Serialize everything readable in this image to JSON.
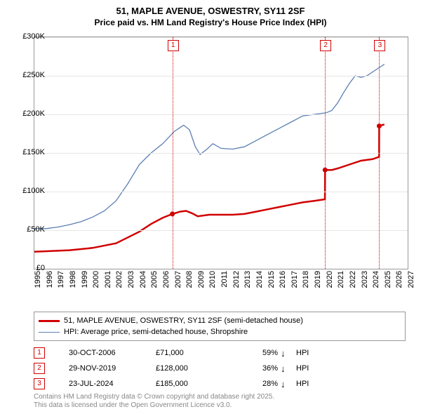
{
  "title_line1": "51, MAPLE AVENUE, OSWESTRY, SY11 2SF",
  "title_line2": "Price paid vs. HM Land Registry's House Price Index (HPI)",
  "chart": {
    "type": "line",
    "background_color": "#ffffff",
    "grid_color": "#e6e6e6",
    "axis_color": "#999999",
    "y": {
      "min": 0,
      "max": 300000,
      "step": 50000,
      "labels": [
        "£0",
        "£50K",
        "£100K",
        "£150K",
        "£200K",
        "£250K",
        "£300K"
      ]
    },
    "x": {
      "min": 1995,
      "max": 2027,
      "step": 1,
      "labels": [
        "1995",
        "1996",
        "1997",
        "1998",
        "1999",
        "2000",
        "2001",
        "2002",
        "2003",
        "2004",
        "2005",
        "2006",
        "2007",
        "2008",
        "2009",
        "2010",
        "2011",
        "2012",
        "2013",
        "2014",
        "2015",
        "2016",
        "2017",
        "2018",
        "2019",
        "2020",
        "2021",
        "2022",
        "2023",
        "2024",
        "2025",
        "2026",
        "2027"
      ]
    },
    "markers": [
      {
        "n": "1",
        "year": 2006.83
      },
      {
        "n": "2",
        "year": 2019.91
      },
      {
        "n": "3",
        "year": 2024.56
      }
    ],
    "series": [
      {
        "name": "price-paid",
        "label": "51, MAPLE AVENUE, OSWESTRY, SY11 2SF (semi-detached house)",
        "color": "#d00000",
        "width": 2.5,
        "points": [
          [
            1995.0,
            22000
          ],
          [
            1998.0,
            24000
          ],
          [
            2000.0,
            27000
          ],
          [
            2002.0,
            33000
          ],
          [
            2004.0,
            48000
          ],
          [
            2005.0,
            58000
          ],
          [
            2006.0,
            66000
          ],
          [
            2006.83,
            71000
          ],
          [
            2007.5,
            74000
          ],
          [
            2008.0,
            75000
          ],
          [
            2008.5,
            72000
          ],
          [
            2009.0,
            68000
          ],
          [
            2010.0,
            70000
          ],
          [
            2012.0,
            70000
          ],
          [
            2013.0,
            71000
          ],
          [
            2014.0,
            74000
          ],
          [
            2015.0,
            77000
          ],
          [
            2016.0,
            80000
          ],
          [
            2017.0,
            83000
          ],
          [
            2018.0,
            86000
          ],
          [
            2019.0,
            88000
          ],
          [
            2019.91,
            90000
          ],
          [
            2019.92,
            128000
          ],
          [
            2020.5,
            128000
          ],
          [
            2021.0,
            130000
          ],
          [
            2022.0,
            135000
          ],
          [
            2023.0,
            140000
          ],
          [
            2024.0,
            142000
          ],
          [
            2024.55,
            145000
          ],
          [
            2024.56,
            185000
          ],
          [
            2025.0,
            187000
          ]
        ],
        "dots": [
          [
            2006.83,
            71000
          ],
          [
            2019.92,
            128000
          ],
          [
            2024.56,
            185000
          ]
        ]
      },
      {
        "name": "hpi",
        "label": "HPI: Average price, semi-detached house, Shropshire",
        "color": "#5b7fb3",
        "width": 1.3,
        "points": [
          [
            1995.0,
            52000
          ],
          [
            1996.0,
            52000
          ],
          [
            1997.0,
            54000
          ],
          [
            1998.0,
            57000
          ],
          [
            1999.0,
            61000
          ],
          [
            2000.0,
            67000
          ],
          [
            2001.0,
            75000
          ],
          [
            2002.0,
            88000
          ],
          [
            2003.0,
            110000
          ],
          [
            2004.0,
            135000
          ],
          [
            2005.0,
            150000
          ],
          [
            2006.0,
            162000
          ],
          [
            2007.0,
            178000
          ],
          [
            2007.8,
            186000
          ],
          [
            2008.3,
            180000
          ],
          [
            2008.8,
            158000
          ],
          [
            2009.2,
            148000
          ],
          [
            2009.8,
            155000
          ],
          [
            2010.3,
            162000
          ],
          [
            2011.0,
            156000
          ],
          [
            2012.0,
            155000
          ],
          [
            2013.0,
            158000
          ],
          [
            2014.0,
            166000
          ],
          [
            2015.0,
            174000
          ],
          [
            2016.0,
            182000
          ],
          [
            2017.0,
            190000
          ],
          [
            2018.0,
            198000
          ],
          [
            2019.0,
            200000
          ],
          [
            2020.0,
            202000
          ],
          [
            2020.5,
            205000
          ],
          [
            2021.0,
            215000
          ],
          [
            2021.5,
            228000
          ],
          [
            2022.0,
            240000
          ],
          [
            2022.5,
            250000
          ],
          [
            2023.0,
            248000
          ],
          [
            2023.5,
            250000
          ],
          [
            2024.0,
            255000
          ],
          [
            2024.5,
            260000
          ],
          [
            2025.0,
            265000
          ]
        ]
      }
    ]
  },
  "legend": {
    "items": [
      {
        "color": "#d00000",
        "width": 3,
        "label": "51, MAPLE AVENUE, OSWESTRY, SY11 2SF (semi-detached house)"
      },
      {
        "color": "#5b7fb3",
        "width": 1.5,
        "label": "HPI: Average price, semi-detached house, Shropshire"
      }
    ]
  },
  "events": [
    {
      "n": "1",
      "date": "30-OCT-2006",
      "price": "£71,000",
      "pct": "59%",
      "arrow": "↓",
      "hpi": "HPI"
    },
    {
      "n": "2",
      "date": "29-NOV-2019",
      "price": "£128,000",
      "pct": "36%",
      "arrow": "↓",
      "hpi": "HPI"
    },
    {
      "n": "3",
      "date": "23-JUL-2024",
      "price": "£185,000",
      "pct": "28%",
      "arrow": "↓",
      "hpi": "HPI"
    }
  ],
  "footer_line1": "Contains HM Land Registry data © Crown copyright and database right 2025.",
  "footer_line2": "This data is licensed under the Open Government Licence v3.0."
}
